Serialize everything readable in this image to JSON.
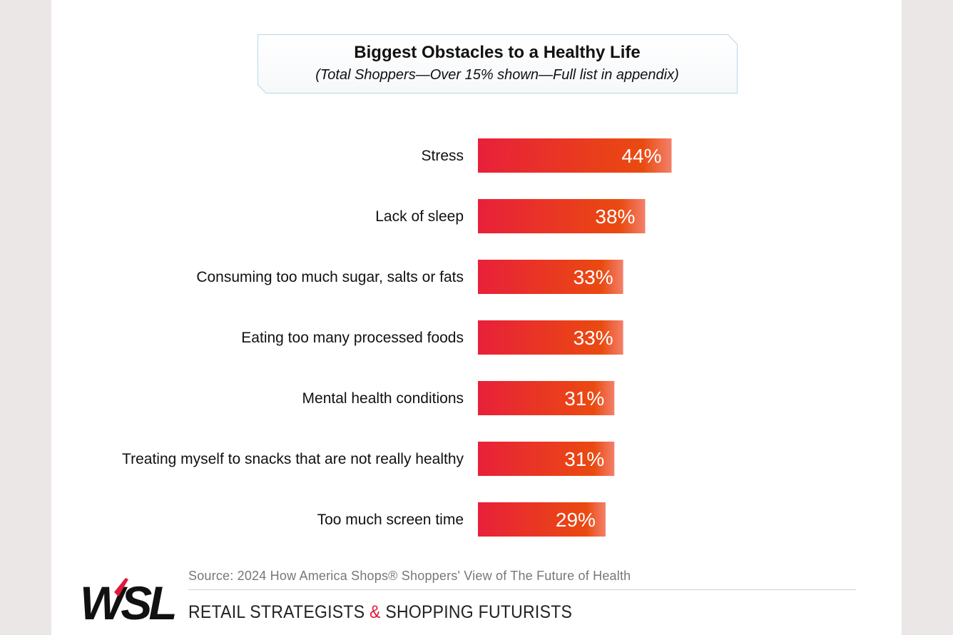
{
  "chart_data": {
    "type": "bar",
    "orientation": "horizontal",
    "title": "Biggest Obstacles to a Healthy Life",
    "subtitle": "(Total Shoppers—Over 15% shown—Full list in appendix)",
    "categories": [
      "Stress",
      "Lack of sleep",
      "Consuming too much sugar, salts or fats",
      "Eating too many processed foods",
      "Mental health conditions",
      "Treating myself to snacks that are not really healthy",
      "Too much screen time"
    ],
    "values": [
      44,
      38,
      33,
      33,
      31,
      31,
      29
    ],
    "value_labels": [
      "44%",
      "38%",
      "33%",
      "33%",
      "31%",
      "31%",
      "29%"
    ],
    "unit": "%",
    "xlabel": "",
    "ylabel": "",
    "grid": false,
    "legend": "none"
  },
  "colors": {
    "bar_start": "#e8203a",
    "bar_end": "#ea4a10",
    "accent_red": "#e0193b"
  },
  "footer": {
    "source": "Source: 2024 How America Shops® Shoppers' View of The Future of Health",
    "tagline_part1": "RETAIL STRATEGISTS ",
    "tagline_amp": "&",
    "tagline_part2": " SHOPPING FUTURISTS",
    "logo_text": "WSL"
  }
}
